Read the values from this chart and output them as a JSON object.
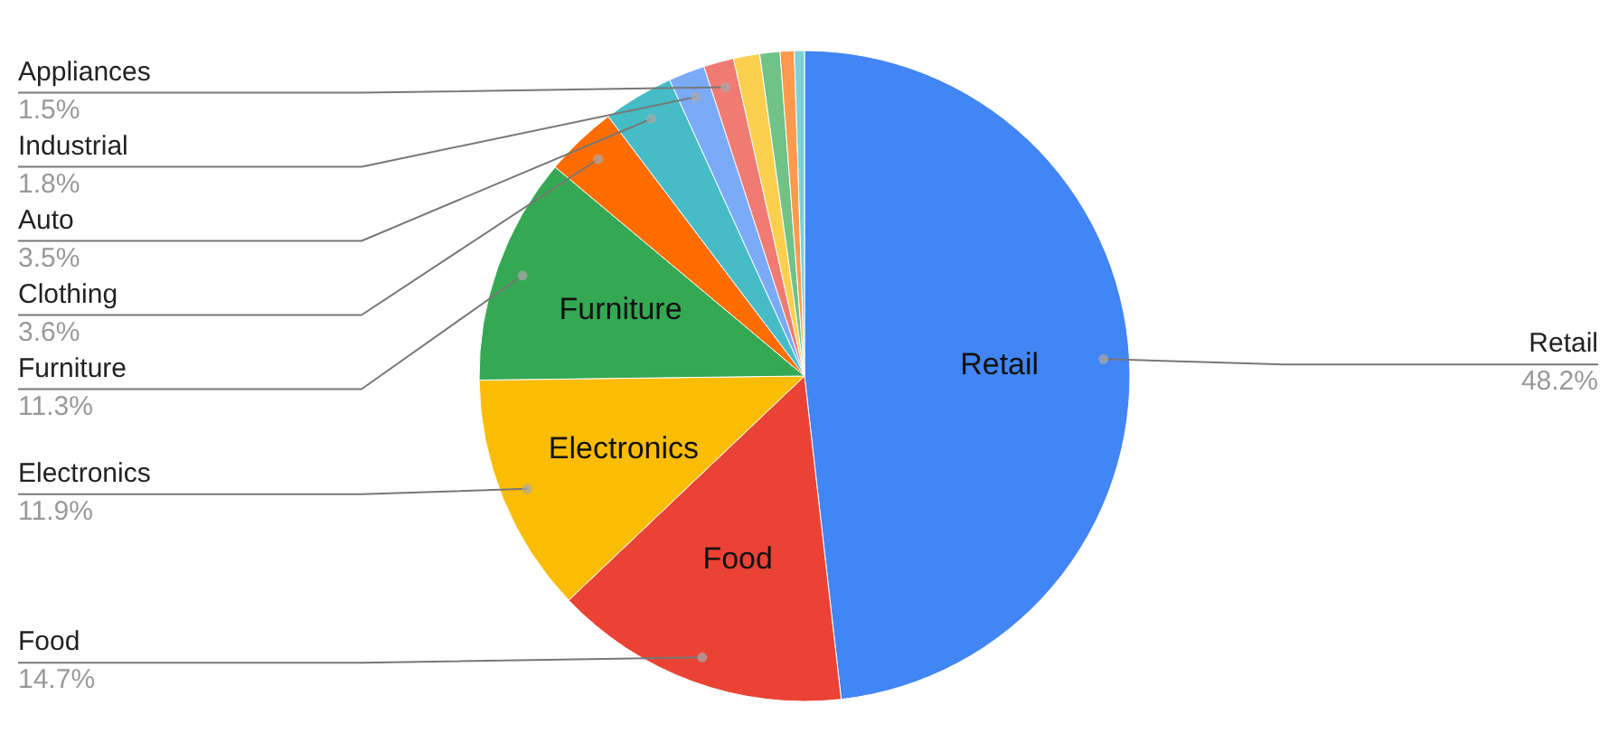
{
  "chart_data": {
    "type": "pie",
    "categories": [
      "Retail",
      "Food",
      "Electronics",
      "Furniture",
      "Clothing",
      "Auto",
      "Industrial",
      "Appliances",
      null,
      null,
      null,
      null
    ],
    "values": [
      48.2,
      14.7,
      11.9,
      11.3,
      3.6,
      3.5,
      1.8,
      1.5,
      1.3,
      1.0,
      0.7,
      0.5
    ],
    "value_labels": [
      "48.2%",
      "14.7%",
      "11.9%",
      "11.3%",
      "3.6%",
      "3.5%",
      "1.8%",
      "1.5%",
      null,
      null,
      null,
      null
    ],
    "colors": [
      "#4285f4",
      "#ea4335",
      "#fbbc04",
      "#34a853",
      "#ff6d01",
      "#46bdc6",
      "#7baaf7",
      "#f07b72",
      "#fcd04f",
      "#71c287",
      "#ff994d",
      "#7ed1d7"
    ]
  }
}
